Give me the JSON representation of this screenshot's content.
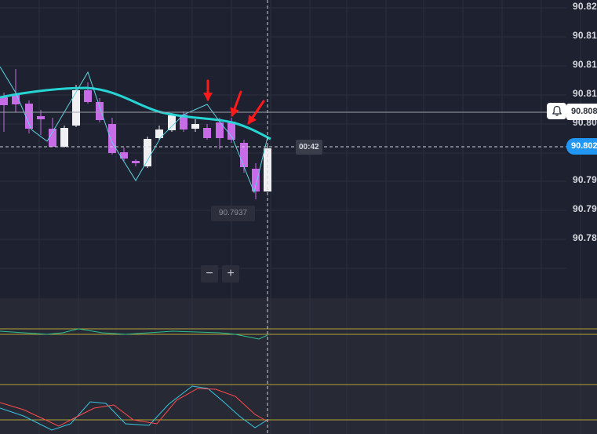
{
  "price_axis": {
    "labels": [
      "90.82",
      "90.81",
      "90.81",
      "90.81",
      "90.80",
      "90.79",
      "90.79",
      "90.78"
    ]
  },
  "hover_price": "90.808",
  "current_price": "90.802",
  "countdown": "00:42",
  "low_marker": "90.7937",
  "zoom": {
    "minus": "−",
    "plus": "+"
  },
  "icons": {
    "bell": "bell-icon",
    "arrow": "down-arrow-annotation"
  },
  "colors": {
    "bull_candle": "#f0f0f2",
    "bear_candle": "#c86be6",
    "moving_average": "#26d4d4",
    "zigzag": "#5fd3df",
    "arrow": "#ff1a1a",
    "current_price_bg": "#2196f3",
    "stoch_k": "#36c5e0",
    "stoch_d": "#ff4b4b",
    "level_line": "#b5a33a",
    "osc_line": "#2bbf8f"
  }
}
